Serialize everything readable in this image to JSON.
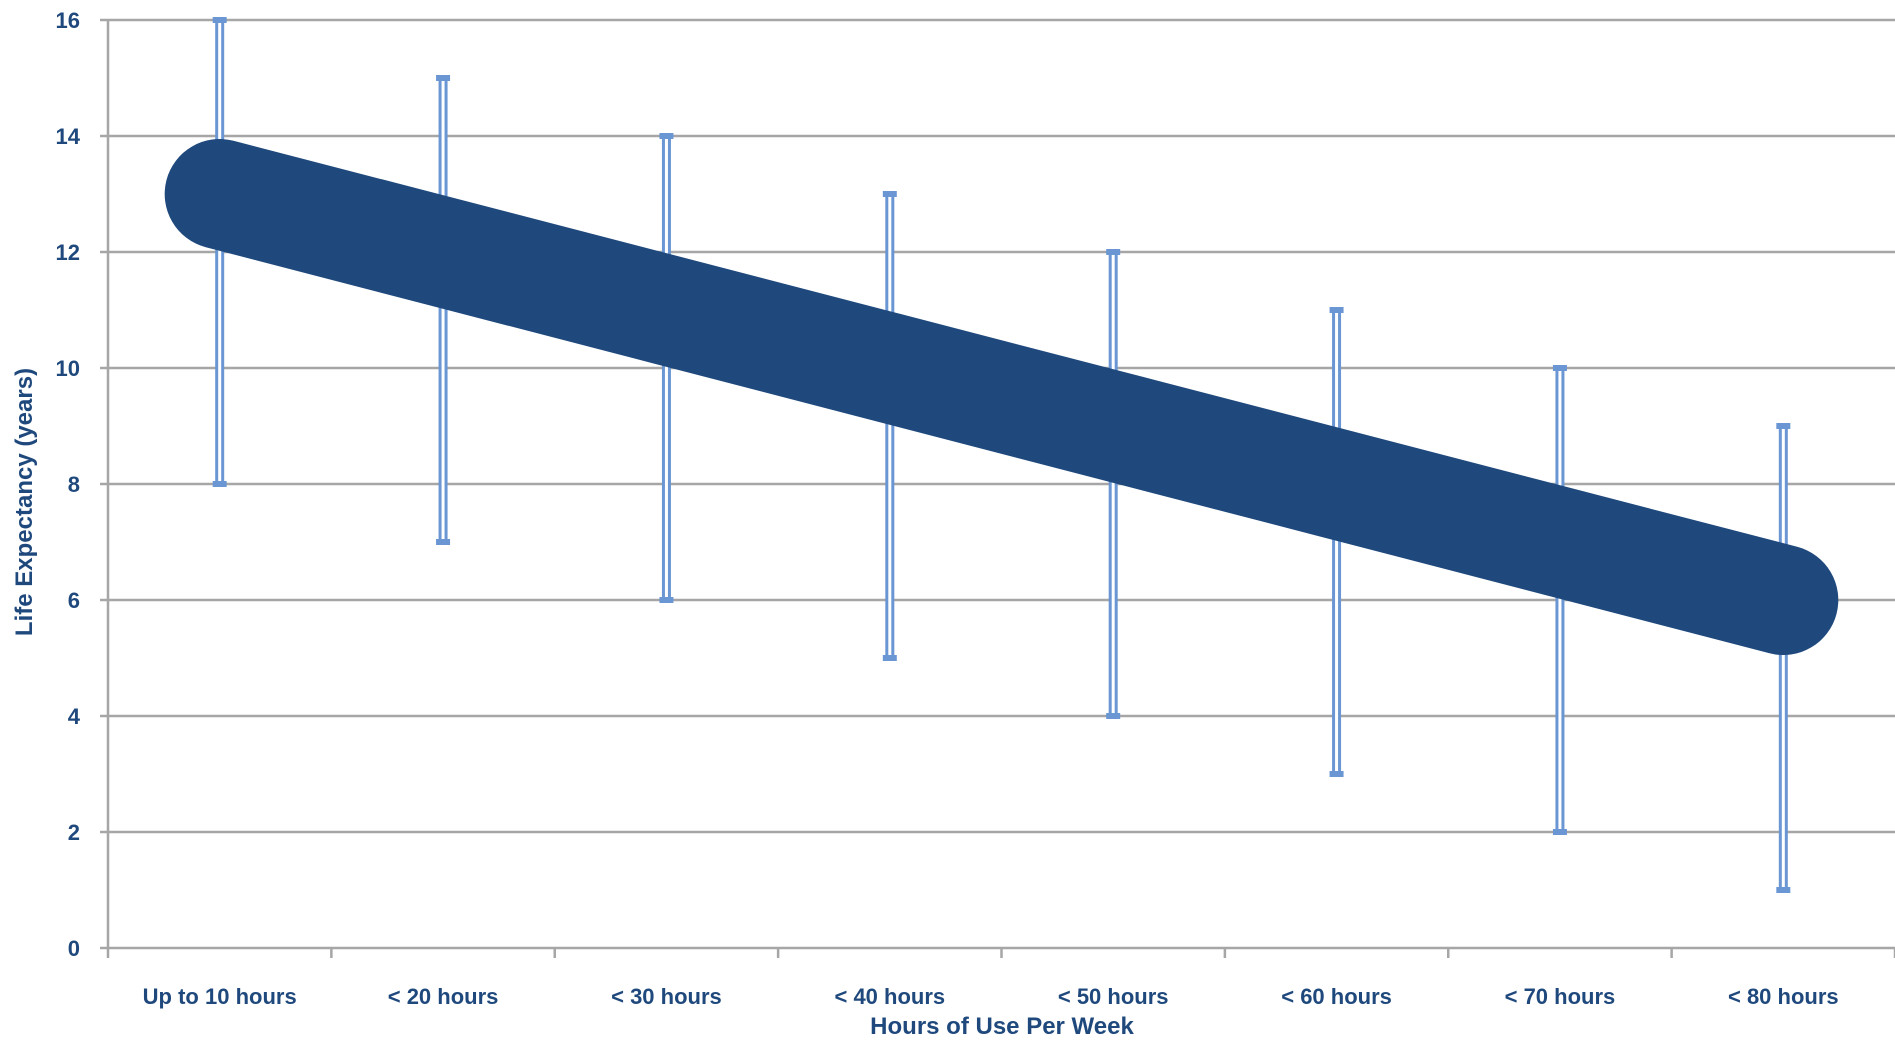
{
  "chart_data": {
    "type": "line",
    "title": "",
    "xlabel": "Hours of Use Per Week",
    "ylabel": "Life Expectancy (years)",
    "ylim": [
      0,
      16
    ],
    "yticks": [
      "0",
      "2",
      "4",
      "6",
      "8",
      "10",
      "12",
      "14",
      "16"
    ],
    "grid": true,
    "legend": "none",
    "categories": [
      "Up to 10 hours",
      "< 20 hours",
      "< 30 hours",
      "< 40 hours",
      "< 50 hours",
      "< 60 hours",
      "< 70 hours",
      "< 80 hours"
    ],
    "series": [
      {
        "values": [
          13,
          12,
          11,
          10,
          9,
          8,
          7,
          6
        ],
        "error_low": [
          8,
          7,
          6,
          5,
          4,
          3,
          2,
          1
        ],
        "error_high": [
          16,
          15,
          14,
          13,
          12,
          11,
          10,
          9
        ],
        "color": "#1f497d",
        "error_color": "#6a96d4"
      }
    ]
  }
}
